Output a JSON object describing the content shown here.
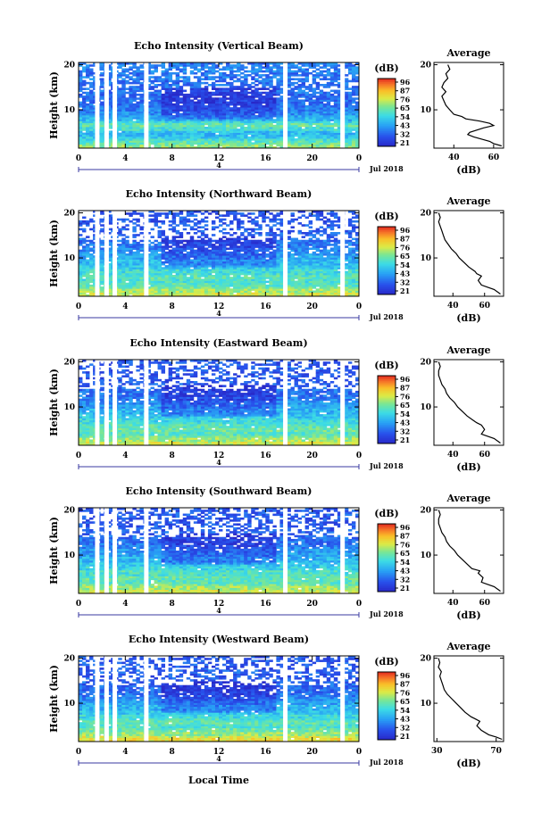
{
  "figure": {
    "x_label": "Local Time",
    "date_label": "Jul 2018",
    "day_marker": "4",
    "unit_label": "(dB)",
    "avg_title": "Average",
    "avg_xlabel": "(dB)",
    "y_label": "Height (km)"
  },
  "chart_data": [
    {
      "type": "heatmap",
      "title": "Echo Intensity (Vertical Beam)",
      "xlabel": "Local Time",
      "ylabel": "Height (km)",
      "x_ticks": [
        "0",
        "4",
        "8",
        "12",
        "16",
        "20",
        "0"
      ],
      "xlim": [
        0,
        24
      ],
      "y_ticks": [
        "10",
        "20"
      ],
      "ylim": [
        1.5,
        20.5
      ],
      "colorbar_ticks": [
        "96",
        "87",
        "76",
        "65",
        "54",
        "43",
        "32",
        "21"
      ],
      "colorbar_range": [
        21,
        96
      ],
      "data_gaps_hours": [
        1.6,
        2.4,
        3.1,
        5.8,
        17.7,
        22.6
      ],
      "average_profile": {
        "title": "Average",
        "xlabel": "(dB)",
        "x_ticks": [
          "40",
          "60"
        ],
        "xlim": [
          30,
          65
        ],
        "y_ticks": [
          "10",
          "20"
        ],
        "ylim": [
          1.5,
          20.5
        ],
        "points": [
          [
            64,
            2
          ],
          [
            60,
            2.5
          ],
          [
            58,
            3
          ],
          [
            54,
            3.5
          ],
          [
            50,
            4
          ],
          [
            47,
            4.5
          ],
          [
            48,
            5
          ],
          [
            55,
            6
          ],
          [
            60,
            6.5
          ],
          [
            58,
            7
          ],
          [
            53,
            7.5
          ],
          [
            46,
            8
          ],
          [
            44,
            8.5
          ],
          [
            40,
            9
          ],
          [
            38,
            10
          ],
          [
            36,
            11
          ],
          [
            35,
            12
          ],
          [
            34,
            13
          ],
          [
            36,
            14
          ],
          [
            34,
            15
          ],
          [
            35,
            16
          ],
          [
            37,
            17
          ],
          [
            36,
            18
          ],
          [
            38,
            19
          ],
          [
            37,
            20
          ]
        ]
      }
    },
    {
      "type": "heatmap",
      "title": "Echo Intensity (Northward Beam)",
      "xlabel": "Local Time",
      "ylabel": "Height (km)",
      "x_ticks": [
        "0",
        "4",
        "8",
        "12",
        "16",
        "20",
        "0"
      ],
      "xlim": [
        0,
        24
      ],
      "y_ticks": [
        "10",
        "20"
      ],
      "ylim": [
        1.5,
        20.5
      ],
      "colorbar_ticks": [
        "96",
        "87",
        "76",
        "65",
        "54",
        "43",
        "32",
        "21"
      ],
      "colorbar_range": [
        21,
        96
      ],
      "data_gaps_hours": [
        1.6,
        2.4,
        3.1,
        5.8,
        17.7,
        22.6
      ],
      "average_profile": {
        "title": "Average",
        "xlabel": "(dB)",
        "x_ticks": [
          "40",
          "60"
        ],
        "xlim": [
          28,
          72
        ],
        "y_ticks": [
          "10",
          "20"
        ],
        "ylim": [
          1.5,
          20.5
        ],
        "points": [
          [
            70,
            2
          ],
          [
            66,
            3
          ],
          [
            62,
            3.5
          ],
          [
            58,
            4
          ],
          [
            56,
            5
          ],
          [
            58,
            6
          ],
          [
            55,
            6.5
          ],
          [
            54,
            7
          ],
          [
            50,
            8
          ],
          [
            47,
            9
          ],
          [
            44,
            10
          ],
          [
            42,
            11
          ],
          [
            39,
            12
          ],
          [
            37,
            13
          ],
          [
            35,
            14
          ],
          [
            34,
            15
          ],
          [
            33,
            16
          ],
          [
            32,
            17
          ],
          [
            31,
            18
          ],
          [
            32,
            19
          ],
          [
            31,
            20
          ]
        ]
      }
    },
    {
      "type": "heatmap",
      "title": "Echo Intensity (Eastward Beam)",
      "xlabel": "Local Time",
      "ylabel": "Height (km)",
      "x_ticks": [
        "0",
        "4",
        "8",
        "12",
        "16",
        "20",
        "0"
      ],
      "xlim": [
        0,
        24
      ],
      "y_ticks": [
        "10",
        "20"
      ],
      "ylim": [
        1.5,
        20.5
      ],
      "colorbar_ticks": [
        "96",
        "87",
        "76",
        "65",
        "54",
        "43",
        "32",
        "21"
      ],
      "colorbar_range": [
        21,
        96
      ],
      "data_gaps_hours": [
        1.6,
        2.4,
        3.1,
        5.8,
        17.7,
        22.6
      ],
      "average_profile": {
        "title": "Average",
        "xlabel": "(dB)",
        "x_ticks": [
          "40",
          "60"
        ],
        "xlim": [
          28,
          72
        ],
        "y_ticks": [
          "10",
          "20"
        ],
        "ylim": [
          1.5,
          20.5
        ],
        "points": [
          [
            70,
            2
          ],
          [
            66,
            3
          ],
          [
            62,
            3.5
          ],
          [
            58,
            4
          ],
          [
            60,
            5
          ],
          [
            58,
            6
          ],
          [
            55,
            6.5
          ],
          [
            53,
            7
          ],
          [
            49,
            8
          ],
          [
            46,
            9
          ],
          [
            43,
            10
          ],
          [
            41,
            11
          ],
          [
            38,
            12
          ],
          [
            36,
            13
          ],
          [
            35,
            14
          ],
          [
            33,
            15
          ],
          [
            32,
            16
          ],
          [
            31,
            17
          ],
          [
            31,
            18
          ],
          [
            32,
            19
          ],
          [
            31,
            20
          ]
        ]
      }
    },
    {
      "type": "heatmap",
      "title": "Echo Intensity (Southward Beam)",
      "xlabel": "Local Time",
      "ylabel": "Height (km)",
      "x_ticks": [
        "0",
        "4",
        "8",
        "12",
        "16",
        "20",
        "0"
      ],
      "xlim": [
        0,
        24
      ],
      "y_ticks": [
        "10",
        "20"
      ],
      "ylim": [
        1.5,
        20.5
      ],
      "colorbar_ticks": [
        "96",
        "87",
        "76",
        "65",
        "54",
        "43",
        "32",
        "21"
      ],
      "colorbar_range": [
        21,
        96
      ],
      "data_gaps_hours": [
        1.6,
        2.4,
        3.1,
        5.8,
        17.7,
        22.6
      ],
      "average_profile": {
        "title": "Average",
        "xlabel": "(dB)",
        "x_ticks": [
          "40",
          "60"
        ],
        "xlim": [
          28,
          72
        ],
        "y_ticks": [
          "10",
          "20"
        ],
        "ylim": [
          1.5,
          20.5
        ],
        "points": [
          [
            70,
            2
          ],
          [
            66,
            3
          ],
          [
            62,
            3.5
          ],
          [
            58,
            4
          ],
          [
            59,
            5
          ],
          [
            56,
            6
          ],
          [
            57,
            6.5
          ],
          [
            52,
            7
          ],
          [
            49,
            8
          ],
          [
            46,
            9
          ],
          [
            43,
            10
          ],
          [
            41,
            11
          ],
          [
            38,
            12
          ],
          [
            36,
            13
          ],
          [
            35,
            14
          ],
          [
            33,
            15
          ],
          [
            32,
            16
          ],
          [
            31,
            17
          ],
          [
            31,
            18
          ],
          [
            32,
            19
          ],
          [
            31,
            20
          ]
        ]
      }
    },
    {
      "type": "heatmap",
      "title": "Echo Intensity (Westward Beam)",
      "xlabel": "Local Time",
      "ylabel": "Height (km)",
      "x_ticks": [
        "0",
        "4",
        "8",
        "12",
        "16",
        "20",
        "0"
      ],
      "xlim": [
        0,
        24
      ],
      "y_ticks": [
        "10",
        "20"
      ],
      "ylim": [
        1.5,
        20.5
      ],
      "colorbar_ticks": [
        "96",
        "87",
        "76",
        "65",
        "54",
        "43",
        "32",
        "21"
      ],
      "colorbar_range": [
        21,
        96
      ],
      "data_gaps_hours": [
        1.6,
        2.4,
        3.1,
        5.8,
        17.7,
        22.6
      ],
      "average_profile": {
        "title": "Average",
        "xlabel": "(dB)",
        "x_ticks": [
          "30",
          "70"
        ],
        "xlim": [
          28,
          75
        ],
        "y_ticks": [
          "10",
          "20"
        ],
        "ylim": [
          1.5,
          20.5
        ],
        "points": [
          [
            74,
            2
          ],
          [
            70,
            2.5
          ],
          [
            65,
            3
          ],
          [
            60,
            4
          ],
          [
            57,
            5
          ],
          [
            59,
            6
          ],
          [
            56,
            6.5
          ],
          [
            53,
            7
          ],
          [
            49,
            8
          ],
          [
            46,
            9
          ],
          [
            43,
            10
          ],
          [
            40,
            11
          ],
          [
            37,
            12
          ],
          [
            35,
            13
          ],
          [
            34,
            14
          ],
          [
            33,
            15
          ],
          [
            32,
            16
          ],
          [
            33,
            17
          ],
          [
            31,
            18
          ],
          [
            32,
            19
          ],
          [
            31,
            20
          ]
        ]
      }
    }
  ]
}
